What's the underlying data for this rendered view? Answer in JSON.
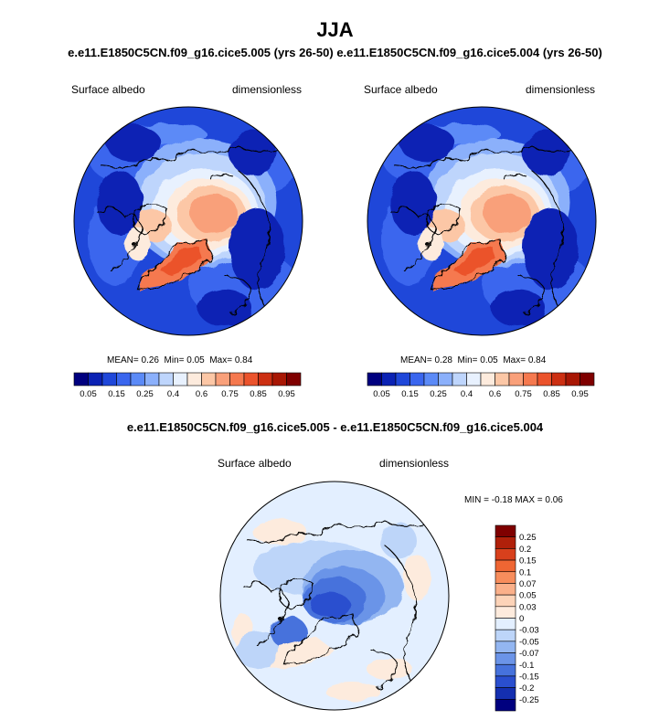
{
  "title": "JJA",
  "top_header": {
    "left_case": "e.e11.E1850C5CN.f09_g16.cice5.005 (yrs 26-50)",
    "right_case": "e.e11.E1850C5CN.f09_g16.cice5.004 (yrs 26-50)"
  },
  "diff_header": "e.e11.E1850C5CN.f09_g16.cice5.005 - e.e11.E1850C5CN.f09_g16.cice5.004",
  "panels": [
    {
      "variable": "Surface albedo",
      "units": "dimensionless",
      "stats": {
        "mean_label": "MEAN=",
        "mean": "0.26",
        "min_label": "Min=",
        "min": "0.05",
        "max_label": "Max=",
        "max": "0.84"
      }
    },
    {
      "variable": "Surface albedo",
      "units": "dimensionless",
      "stats": {
        "mean_label": "MEAN=",
        "mean": "0.28",
        "min_label": "Min=",
        "min": "0.05",
        "max_label": "Max=",
        "max": "0.84"
      }
    },
    {
      "variable": "Surface albedo",
      "units": "dimensionless",
      "stats": {
        "min_label": "MIN =",
        "min": "-0.18",
        "max_label": "MAX =",
        "max": "0.06"
      }
    }
  ],
  "chart_data": [
    {
      "type": "heatmap",
      "projection": "north polar stereographic",
      "title": "Surface albedo",
      "units": "dimensionless",
      "case": "e.e11.E1850C5CN.f09_g16.cice5.005 (yrs 26-50)",
      "season": "JJA",
      "mean": 0.26,
      "min": 0.05,
      "max": 0.84,
      "colorbar": {
        "orientation": "horizontal",
        "levels": [
          0.05,
          0.1,
          0.15,
          0.2,
          0.25,
          0.3,
          0.4,
          0.5,
          0.6,
          0.7,
          0.75,
          0.8,
          0.85,
          0.9,
          0.95
        ],
        "tick_labels": [
          "0.05",
          "0.15",
          "0.25",
          "0.4",
          "0.6",
          "0.75",
          "0.85",
          "0.95"
        ],
        "colors": [
          "#00007f",
          "#0b22b4",
          "#1f47d9",
          "#3a66ee",
          "#5b8af7",
          "#8bb0fb",
          "#bed5fc",
          "#e8f1fe",
          "#fdebdd",
          "#fcc7a6",
          "#f9a07a",
          "#f5794f",
          "#eb532c",
          "#cc2f12",
          "#a81704",
          "#7f0000"
        ]
      }
    },
    {
      "type": "heatmap",
      "projection": "north polar stereographic",
      "title": "Surface albedo",
      "units": "dimensionless",
      "case": "e.e11.E1850C5CN.f09_g16.cice5.004 (yrs 26-50)",
      "season": "JJA",
      "mean": 0.28,
      "min": 0.05,
      "max": 0.84,
      "colorbar": {
        "orientation": "horizontal",
        "levels": [
          0.05,
          0.1,
          0.15,
          0.2,
          0.25,
          0.3,
          0.4,
          0.5,
          0.6,
          0.7,
          0.75,
          0.8,
          0.85,
          0.9,
          0.95
        ],
        "tick_labels": [
          "0.05",
          "0.15",
          "0.25",
          "0.4",
          "0.6",
          "0.75",
          "0.85",
          "0.95"
        ],
        "colors": [
          "#00007f",
          "#0b22b4",
          "#1f47d9",
          "#3a66ee",
          "#5b8af7",
          "#8bb0fb",
          "#bed5fc",
          "#e8f1fe",
          "#fdebdd",
          "#fcc7a6",
          "#f9a07a",
          "#f5794f",
          "#eb532c",
          "#cc2f12",
          "#a81704",
          "#7f0000"
        ]
      }
    },
    {
      "type": "heatmap",
      "projection": "north polar stereographic",
      "title": "Surface albedo",
      "units": "dimensionless",
      "case": "e.e11.E1850C5CN.f09_g16.cice5.005 - e.e11.E1850C5CN.f09_g16.cice5.004",
      "season": "JJA",
      "min": -0.18,
      "max": 0.06,
      "colorbar": {
        "orientation": "vertical",
        "levels": [
          0.25,
          0.2,
          0.15,
          0.1,
          0.07,
          0.05,
          0.03,
          0,
          -0.03,
          -0.05,
          -0.07,
          -0.1,
          -0.15,
          -0.2,
          -0.25
        ],
        "tick_labels": [
          "0.25",
          "0.2",
          "0.15",
          "0.1",
          "0.07",
          "0.05",
          "0.03",
          "0",
          "-0.03",
          "-0.05",
          "-0.07",
          "-0.1",
          "-0.15",
          "-0.2",
          "-0.25"
        ],
        "colors": [
          "#7f0000",
          "#b0200a",
          "#d8401c",
          "#ef6633",
          "#f78d5c",
          "#fab08a",
          "#fcd3b8",
          "#fdebdd",
          "#e3efff",
          "#bdd5f9",
          "#93b6f1",
          "#6b94e8",
          "#4672dc",
          "#2a4fcf",
          "#142fb0",
          "#00007f"
        ]
      }
    }
  ]
}
